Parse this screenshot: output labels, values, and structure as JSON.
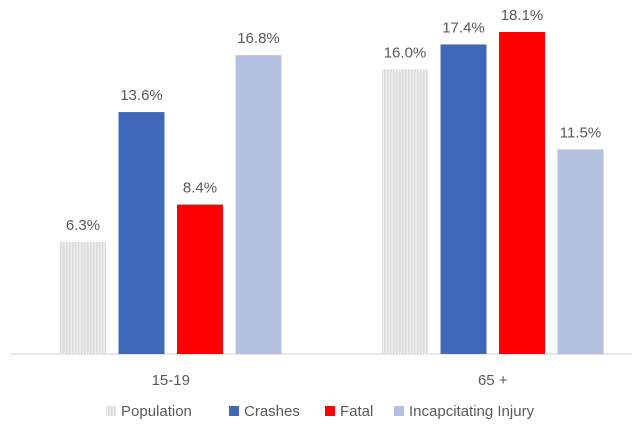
{
  "chart_data": {
    "type": "bar",
    "categories": [
      "15-19",
      "65 +"
    ],
    "series": [
      {
        "name": "Population",
        "color": "#d9d9d9",
        "values": [
          6.3,
          16.0
        ],
        "value_labels": [
          "6.3%",
          "16.0%"
        ]
      },
      {
        "name": "Crashes",
        "color": "#4068b8",
        "values": [
          13.6,
          17.4
        ],
        "value_labels": [
          "13.6%",
          "17.4%"
        ]
      },
      {
        "name": "Fatal",
        "color": "#ff0000",
        "values": [
          8.4,
          18.1
        ],
        "value_labels": [
          "8.4%",
          "18.1%"
        ]
      },
      {
        "name": "Incapcitating Injury",
        "color": "#b4c0e0",
        "values": [
          16.8,
          11.5
        ],
        "value_labels": [
          "16.8%",
          "11.5%"
        ]
      }
    ],
    "legend": "bottom"
  }
}
